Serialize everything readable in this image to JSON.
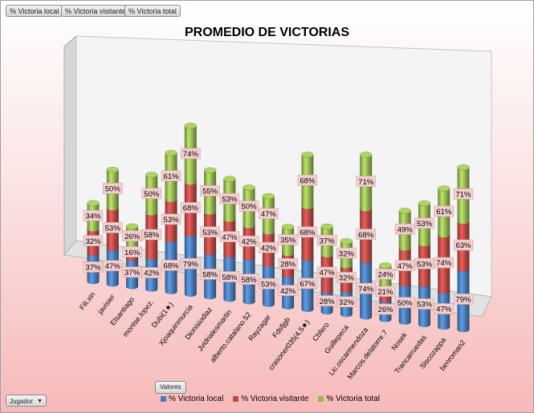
{
  "pivot": {
    "fields": [
      "% Victoria local",
      "% Victoria visitante",
      "% Victoria total"
    ],
    "values_button": "Valores",
    "filter_button": "Jugador"
  },
  "colors": {
    "local": "#4a7ebb",
    "visitante": "#be4b48",
    "total": "#98b954"
  },
  "chart_data": {
    "type": "bar",
    "subtype": "3d-stacked-cylinder",
    "title": "PROMEDIO DE VICTORIAS",
    "categories": [
      "Fili.xin",
      "javisier",
      "Elsantiago",
      "montse.lopez.",
      "Dubi(1★)",
      "Xjoaquinmurcia",
      "Dionisiodiaz",
      "Jvidrialesmartin",
      "alberto.catalano.52",
      "Rayzagar",
      "Fdsfjgb",
      "crasoner035(4,5★)",
      "Cbfero",
      "Guillepeca",
      "Lic.oscarmendoza",
      "Marcos.delatorre.7",
      "Nosek",
      "Trancarruedas",
      "Siscozappa",
      "benroman2"
    ],
    "series": [
      {
        "name": "% Victoria local",
        "values": [
          37,
          47,
          37,
          42,
          68,
          79,
          58,
          58,
          58,
          53,
          42,
          67,
          28,
          32,
          74,
          26,
          50,
          53,
          47,
          79
        ]
      },
      {
        "name": "% Victoria visitante",
        "values": [
          32,
          53,
          16,
          58,
          53,
          68,
          53,
          47,
          42,
          42,
          28,
          68,
          47,
          32,
          68,
          21,
          47,
          53,
          74,
          63
        ]
      },
      {
        "name": "% Victoria total",
        "values": [
          34,
          50,
          26,
          50,
          61,
          74,
          55,
          53,
          50,
          47,
          35,
          68,
          37,
          32,
          71,
          24,
          49,
          53,
          61,
          71
        ]
      }
    ],
    "data_labels": [
      "37%",
      "47%",
      "37%",
      "42%",
      "68%",
      "79%",
      "58%",
      "58%",
      "58%",
      "53%",
      "42%",
      "67%",
      "28%",
      "32%",
      "74%",
      "26%",
      "50%",
      "53%",
      "47%",
      "79%"
    ],
    "data_labels_visitante": [
      "32%",
      "53%",
      "16%",
      "58%",
      "53%",
      "68%",
      "53%",
      "47%",
      "42%",
      "42%",
      "28%",
      "68%",
      "47%",
      "32%",
      "68%",
      "21%",
      "47%",
      "53%",
      "74%",
      "63%"
    ],
    "data_labels_total": [
      "34%",
      "50%",
      "26%",
      "50%",
      "61%",
      "74%",
      "55%",
      "53%",
      "50%",
      "47%",
      "35%",
      "68%",
      "37%",
      "32%",
      "71%",
      "24%",
      "49%",
      "53%",
      "61%",
      "71%"
    ],
    "legend": "bottom"
  }
}
